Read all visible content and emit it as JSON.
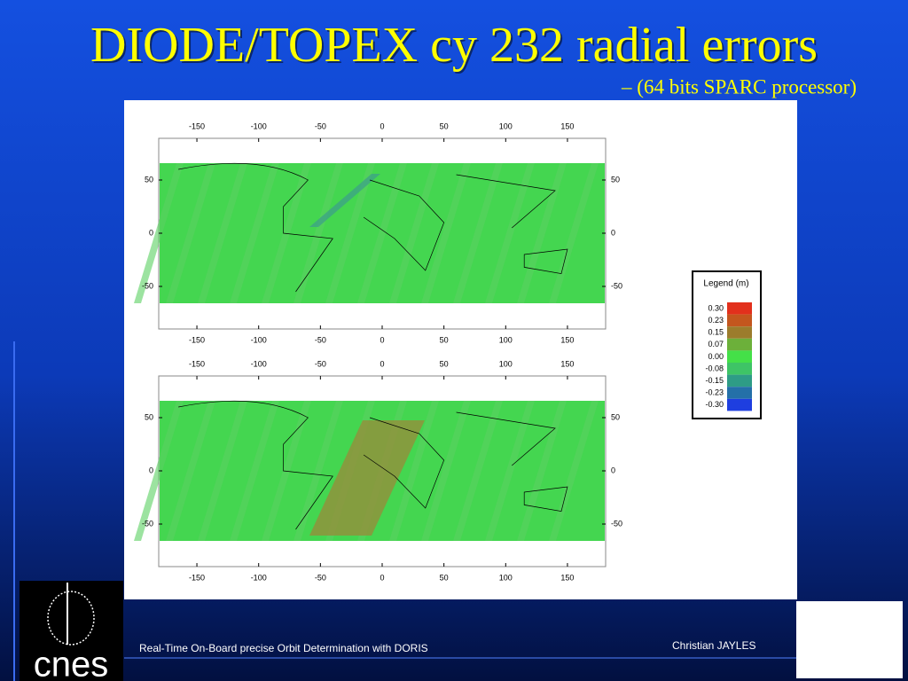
{
  "title": "DIODE/TOPEX cy 232 radial errors",
  "subtitle": "– (64 bits SPARC processor)",
  "maps": [
    {
      "x_ticks": [
        -150,
        -100,
        -50,
        0,
        50,
        100,
        150
      ],
      "y_ticks": [
        50,
        0,
        -50
      ]
    },
    {
      "x_ticks": [
        -150,
        -100,
        -50,
        0,
        50,
        100,
        150
      ],
      "y_ticks": [
        50,
        0,
        -50
      ]
    }
  ],
  "legend": {
    "title": "Legend (m)",
    "items": [
      {
        "label": "0.30",
        "color": "#e2301c"
      },
      {
        "label": "0.23",
        "color": "#c4561e"
      },
      {
        "label": "0.15",
        "color": "#9c7c2c"
      },
      {
        "label": "0.07",
        "color": "#6cb03a"
      },
      {
        "label": "0.00",
        "color": "#44e048"
      },
      {
        "label": "-0.08",
        "color": "#3ec466"
      },
      {
        "label": "-0.15",
        "color": "#2e9c86"
      },
      {
        "label": "-0.23",
        "color": "#2470a8"
      },
      {
        "label": "-0.30",
        "color": "#1e3ee0"
      }
    ]
  },
  "footer": {
    "left": "Real-Time On-Board precise Orbit Determination with DORIS",
    "right": "Christian JAYLES"
  },
  "logo": "cnes"
}
